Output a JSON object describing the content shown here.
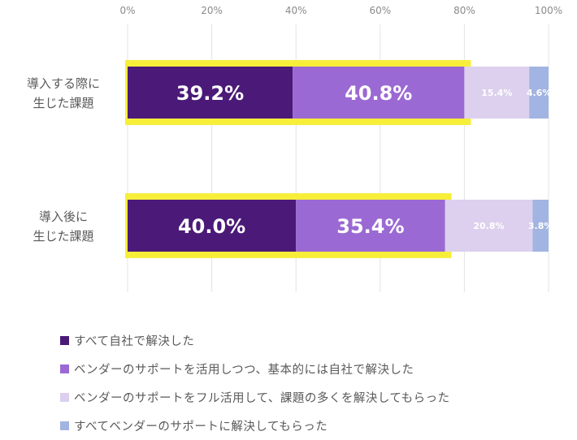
{
  "chart_data": {
    "type": "bar",
    "orientation": "horizontal",
    "stacked": true,
    "xlim": [
      0,
      100
    ],
    "ticks": [
      "0%",
      "20%",
      "40%",
      "60%",
      "80%",
      "100%"
    ],
    "categories": [
      [
        "導入する際に",
        "生じた課題"
      ],
      [
        "導入後に",
        "生じた課題"
      ]
    ],
    "series": [
      {
        "name": "すべて自社で解決した",
        "color": "#4b1a78",
        "values": [
          39.2,
          40.0
        ],
        "labels": [
          "39.2%",
          "40.0%"
        ],
        "label_style": "big"
      },
      {
        "name": "ベンダーのサポートを活用しつつ、基本的には自社で解決した",
        "color": "#9b69d3",
        "values": [
          40.8,
          35.4
        ],
        "labels": [
          "40.8%",
          "35.4%"
        ],
        "label_style": "big"
      },
      {
        "name": "ベンダーのサポートをフル活用して、課題の多くを解決してもらった",
        "color": "#dcd0ee",
        "values": [
          15.4,
          20.8
        ],
        "labels": [
          "15.4%",
          "20.8%"
        ],
        "label_style": "small"
      },
      {
        "name": "すべてベンダーのサポートに解決してもらった",
        "color": "#a2b4e1",
        "values": [
          4.6,
          3.8
        ],
        "labels": [
          "4.6%",
          "3.8%"
        ],
        "label_style": "small"
      }
    ],
    "highlight": {
      "color": "#f7ee3a",
      "series_count": 2
    },
    "legend_position": "bottom-left",
    "grid": true
  }
}
